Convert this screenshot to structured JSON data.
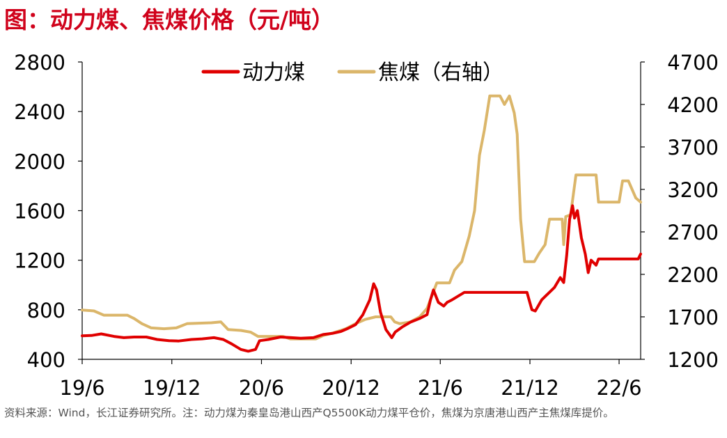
{
  "title": "图：动力煤、焦煤价格（元/吨）",
  "source_note": "资料来源：Wind，长江证券研究所。注：动力煤为秦皇岛港山西产Q5500K动力煤平仓价，焦煤为京唐港山西产主焦煤库提价。",
  "colors": {
    "title": "#d0021b",
    "thermal": "#e00000",
    "coking": "#dbb66a",
    "axis": "#000000"
  },
  "chart_data": {
    "type": "line",
    "title": "动力煤、焦煤价格（元/吨）",
    "grid": false,
    "legend_position": "top-center",
    "x_axis": {
      "type": "date",
      "range": [
        "2019-06-01",
        "2022-07-15"
      ],
      "ticks": [
        {
          "date": "2019-06-01",
          "label": "19/6"
        },
        {
          "date": "2019-12-01",
          "label": "19/12"
        },
        {
          "date": "2020-06-01",
          "label": "20/6"
        },
        {
          "date": "2020-12-01",
          "label": "20/12"
        },
        {
          "date": "2021-06-01",
          "label": "21/6"
        },
        {
          "date": "2021-12-01",
          "label": "21/12"
        },
        {
          "date": "2022-06-01",
          "label": "22/6"
        }
      ]
    },
    "y_left": {
      "min": 400,
      "max": 2800,
      "ticks": [
        400,
        800,
        1200,
        1600,
        2000,
        2400,
        2800
      ]
    },
    "y_right": {
      "min": 1200,
      "max": 4700,
      "ticks": [
        1200,
        1700,
        2200,
        2700,
        3200,
        3700,
        4200,
        4700
      ]
    },
    "series": [
      {
        "name": "动力煤",
        "axis": "left",
        "color": "#e00000",
        "points": [
          [
            "2019-06-01",
            590
          ],
          [
            "2019-06-20",
            592
          ],
          [
            "2019-07-10",
            605
          ],
          [
            "2019-08-05",
            585
          ],
          [
            "2019-08-25",
            575
          ],
          [
            "2019-09-15",
            580
          ],
          [
            "2019-10-10",
            580
          ],
          [
            "2019-11-01",
            560
          ],
          [
            "2019-11-25",
            550
          ],
          [
            "2019-12-15",
            548
          ],
          [
            "2020-01-10",
            560
          ],
          [
            "2020-02-01",
            565
          ],
          [
            "2020-02-25",
            575
          ],
          [
            "2020-03-15",
            560
          ],
          [
            "2020-04-01",
            525
          ],
          [
            "2020-04-20",
            480
          ],
          [
            "2020-05-05",
            465
          ],
          [
            "2020-05-20",
            480
          ],
          [
            "2020-05-28",
            550
          ],
          [
            "2020-06-15",
            560
          ],
          [
            "2020-07-10",
            580
          ],
          [
            "2020-08-01",
            575
          ],
          [
            "2020-08-20",
            570
          ],
          [
            "2020-09-15",
            575
          ],
          [
            "2020-10-05",
            600
          ],
          [
            "2020-10-25",
            610
          ],
          [
            "2020-11-10",
            625
          ],
          [
            "2020-11-25",
            650
          ],
          [
            "2020-12-10",
            680
          ],
          [
            "2020-12-25",
            760
          ],
          [
            "2021-01-08",
            880
          ],
          [
            "2021-01-16",
            1010
          ],
          [
            "2021-01-22",
            960
          ],
          [
            "2021-01-30",
            780
          ],
          [
            "2021-02-10",
            640
          ],
          [
            "2021-02-22",
            575
          ],
          [
            "2021-03-01",
            620
          ],
          [
            "2021-03-15",
            660
          ],
          [
            "2021-04-01",
            700
          ],
          [
            "2021-04-20",
            730
          ],
          [
            "2021-05-05",
            760
          ],
          [
            "2021-05-12",
            880
          ],
          [
            "2021-05-18",
            960
          ],
          [
            "2021-05-28",
            860
          ],
          [
            "2021-06-08",
            830
          ],
          [
            "2021-06-15",
            860
          ],
          [
            "2021-06-25",
            880
          ],
          [
            "2021-07-20",
            940
          ],
          [
            "2021-11-25",
            940
          ],
          [
            "2021-12-05",
            800
          ],
          [
            "2021-12-12",
            790
          ],
          [
            "2021-12-25",
            880
          ],
          [
            "2022-01-20",
            980
          ],
          [
            "2022-02-01",
            1060
          ],
          [
            "2022-02-08",
            1020
          ],
          [
            "2022-02-14",
            1240
          ],
          [
            "2022-02-20",
            1530
          ],
          [
            "2022-02-26",
            1640
          ],
          [
            "2022-03-02",
            1540
          ],
          [
            "2022-03-08",
            1600
          ],
          [
            "2022-03-16",
            1380
          ],
          [
            "2022-03-24",
            1250
          ],
          [
            "2022-03-30",
            1100
          ],
          [
            "2022-04-05",
            1200
          ],
          [
            "2022-04-15",
            1160
          ],
          [
            "2022-04-20",
            1210
          ],
          [
            "2022-07-10",
            1210
          ],
          [
            "2022-07-15",
            1250
          ]
        ]
      },
      {
        "name": "焦煤（右轴）",
        "axis": "right",
        "color": "#dbb66a",
        "points": [
          [
            "2019-06-01",
            1780
          ],
          [
            "2019-06-25",
            1770
          ],
          [
            "2019-07-15",
            1720
          ],
          [
            "2019-09-01",
            1720
          ],
          [
            "2019-09-15",
            1680
          ],
          [
            "2019-10-01",
            1620
          ],
          [
            "2019-10-20",
            1570
          ],
          [
            "2019-11-15",
            1560
          ],
          [
            "2019-12-10",
            1570
          ],
          [
            "2020-01-01",
            1620
          ],
          [
            "2020-02-20",
            1630
          ],
          [
            "2020-03-10",
            1640
          ],
          [
            "2020-03-25",
            1550
          ],
          [
            "2020-04-20",
            1540
          ],
          [
            "2020-05-10",
            1520
          ],
          [
            "2020-05-25",
            1470
          ],
          [
            "2020-07-15",
            1470
          ],
          [
            "2020-07-30",
            1440
          ],
          [
            "2020-09-20",
            1440
          ],
          [
            "2020-10-05",
            1480
          ],
          [
            "2020-10-25",
            1510
          ],
          [
            "2020-11-20",
            1560
          ],
          [
            "2020-12-10",
            1620
          ],
          [
            "2020-12-30",
            1670
          ],
          [
            "2021-01-20",
            1700
          ],
          [
            "2021-02-20",
            1700
          ],
          [
            "2021-02-28",
            1640
          ],
          [
            "2021-03-10",
            1620
          ],
          [
            "2021-04-01",
            1640
          ],
          [
            "2021-04-20",
            1700
          ],
          [
            "2021-05-05",
            1800
          ],
          [
            "2021-05-25",
            2100
          ],
          [
            "2021-06-20",
            2100
          ],
          [
            "2021-06-30",
            2250
          ],
          [
            "2021-07-15",
            2350
          ],
          [
            "2021-07-30",
            2650
          ],
          [
            "2021-08-10",
            2950
          ],
          [
            "2021-08-20",
            3600
          ],
          [
            "2021-08-30",
            3900
          ],
          [
            "2021-09-10",
            4300
          ],
          [
            "2021-10-01",
            4300
          ],
          [
            "2021-10-10",
            4200
          ],
          [
            "2021-10-20",
            4300
          ],
          [
            "2021-10-30",
            4100
          ],
          [
            "2021-11-05",
            3850
          ],
          [
            "2021-11-12",
            2850
          ],
          [
            "2021-11-20",
            2350
          ],
          [
            "2021-12-10",
            2350
          ],
          [
            "2021-12-20",
            2450
          ],
          [
            "2022-01-01",
            2550
          ],
          [
            "2022-01-10",
            2850
          ],
          [
            "2022-02-05",
            2850
          ],
          [
            "2022-02-08",
            2550
          ],
          [
            "2022-02-12",
            2880
          ],
          [
            "2022-02-22",
            2900
          ],
          [
            "2022-03-05",
            3370
          ],
          [
            "2022-04-15",
            3370
          ],
          [
            "2022-04-20",
            3050
          ],
          [
            "2022-06-01",
            3050
          ],
          [
            "2022-06-08",
            3300
          ],
          [
            "2022-06-20",
            3300
          ],
          [
            "2022-07-05",
            3100
          ],
          [
            "2022-07-15",
            3050
          ]
        ]
      }
    ]
  }
}
